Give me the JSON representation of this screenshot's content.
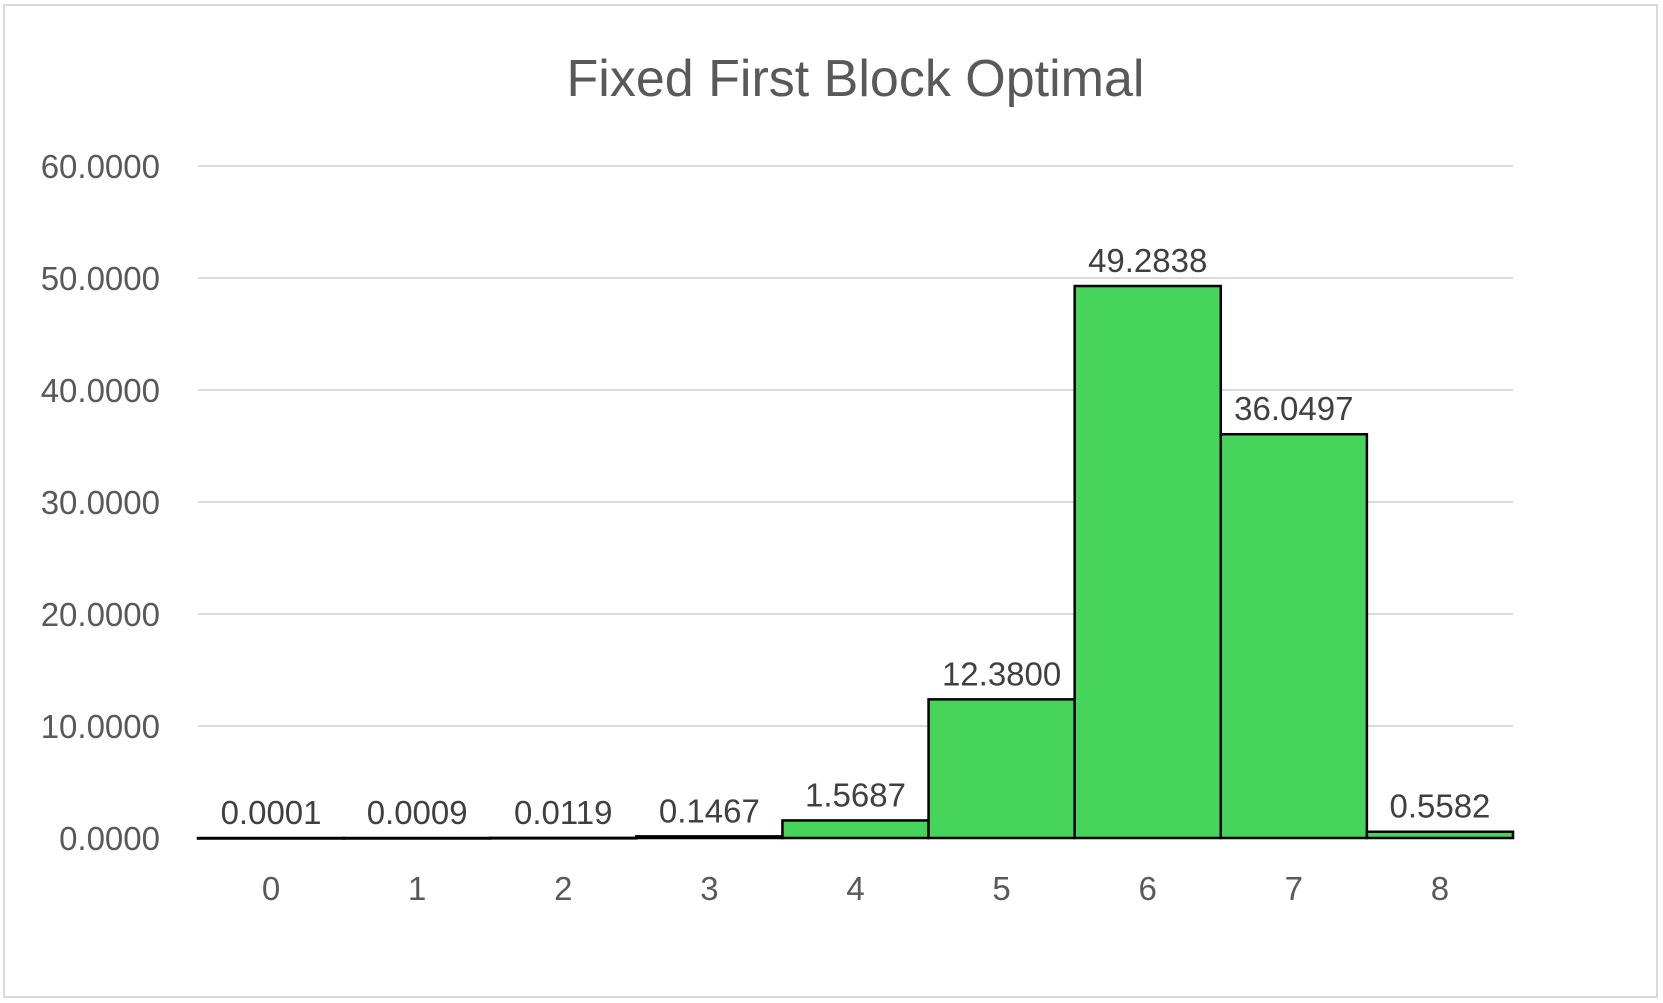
{
  "chart_data": {
    "type": "bar",
    "title": "Fixed First Block Optimal",
    "xlabel": "",
    "ylabel": "",
    "categories": [
      "0",
      "1",
      "2",
      "3",
      "4",
      "5",
      "6",
      "7",
      "8"
    ],
    "values": [
      0.0001,
      0.0009,
      0.0119,
      0.1467,
      1.5687,
      12.38,
      49.2838,
      36.0497,
      0.5582
    ],
    "data_labels": [
      "0.0001",
      "0.0009",
      "0.0119",
      "0.1467",
      "1.5687",
      "12.3800",
      "49.2838",
      "36.0497",
      "0.5582"
    ],
    "ylim": [
      0,
      60
    ],
    "yticks": [
      0,
      10,
      20,
      30,
      40,
      50,
      60
    ],
    "ytick_labels": [
      "0.0000",
      "10.0000",
      "20.0000",
      "30.0000",
      "40.0000",
      "50.0000",
      "60.0000"
    ],
    "grid": true,
    "legend": "none",
    "colors": {
      "bar_fill": "#46d45a",
      "bar_stroke": "#000000",
      "gridline": "#d9d9d9",
      "axis_text": "#595959",
      "label_text": "#404040"
    }
  }
}
